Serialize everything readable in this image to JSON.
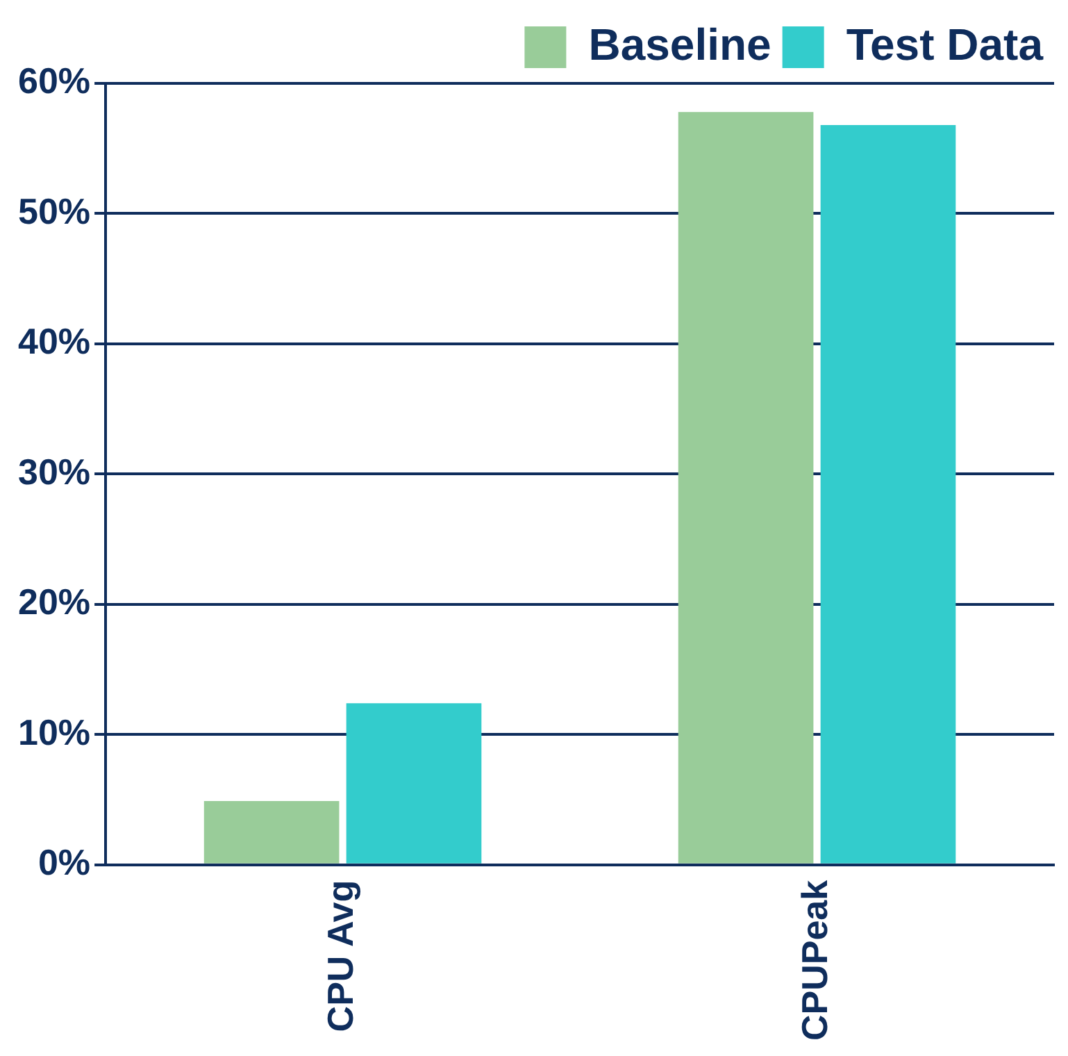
{
  "chart_data": {
    "type": "bar",
    "categories": [
      "CPU Avg",
      "CPUPeak"
    ],
    "series": [
      {
        "name": "Baseline",
        "color": "#99cc99",
        "values": [
          4.9,
          57.8
        ]
      },
      {
        "name": "Test Data",
        "color": "#33cccc",
        "values": [
          12.4,
          56.8
        ]
      }
    ],
    "ylim": [
      0,
      60
    ],
    "yticks": [
      {
        "value": 0,
        "label": "0%"
      },
      {
        "value": 10,
        "label": "10%"
      },
      {
        "value": 20,
        "label": "20%"
      },
      {
        "value": 30,
        "label": "30%"
      },
      {
        "value": 40,
        "label": "40%"
      },
      {
        "value": 50,
        "label": "50%"
      },
      {
        "value": 60,
        "label": "60%"
      }
    ],
    "grid": "y",
    "legend": "top right"
  }
}
